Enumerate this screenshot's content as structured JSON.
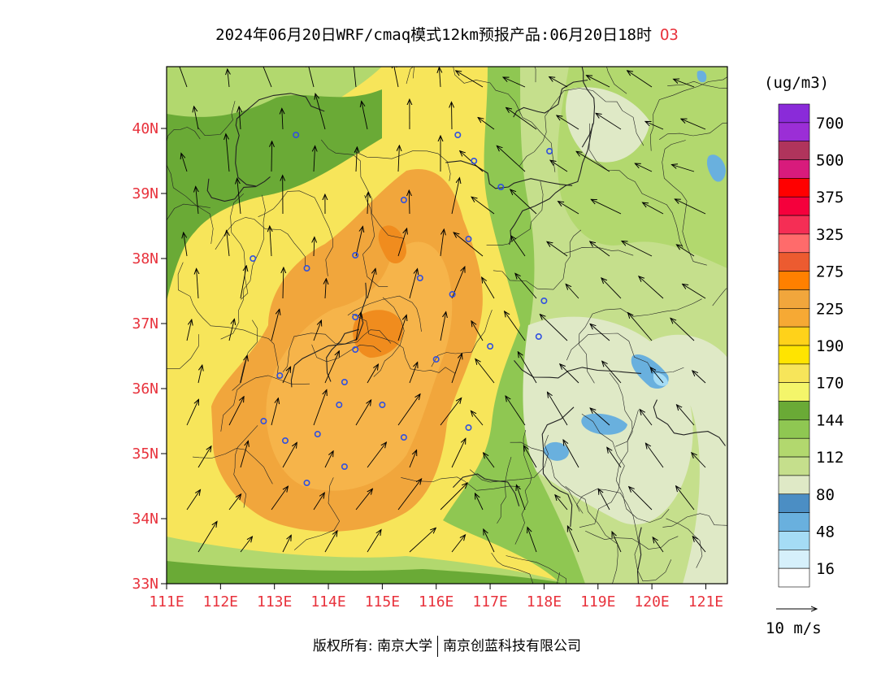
{
  "title": {
    "main": "2024年06月20日WRF/cmaq模式12km预报产品:06月20日18时",
    "pollutant": "O3"
  },
  "axes": {
    "lat_labels": [
      "33N",
      "34N",
      "35N",
      "36N",
      "37N",
      "38N",
      "39N",
      "40N"
    ],
    "lon_labels": [
      "111E",
      "112E",
      "113E",
      "114E",
      "115E",
      "116E",
      "117E",
      "118E",
      "119E",
      "120E",
      "121E"
    ]
  },
  "colorbar": {
    "unit": "(ug/m3)",
    "levels": [
      "16",
      "48",
      "80",
      "112",
      "144",
      "170",
      "190",
      "225",
      "275",
      "325",
      "375",
      "500",
      "700"
    ],
    "colors": [
      "#ffffff",
      "#d6f0fb",
      "#a5dcf5",
      "#69b0de",
      "#4b8ec4",
      "#dfe9c6",
      "#c5df8c",
      "#b2d86e",
      "#8fc752",
      "#6aaa36",
      "#f4f56a",
      "#f7e55a",
      "#ffe400",
      "#ffd21a",
      "#f6a934",
      "#f1a63c",
      "#ff8000",
      "#ec5b30",
      "#ff6b6b",
      "#f52e55",
      "#f5003c",
      "#ff0000",
      "#d81b7c",
      "#b0345c",
      "#9b2ed6",
      "#8a2bd9"
    ]
  },
  "wind_legend": {
    "label": "10 m/s"
  },
  "footer": {
    "left": "版权所有: 南京大学",
    "right": "南京创蓝科技有限公司"
  },
  "field_colors": {
    "sea_light": "#dfe9c6",
    "green_light": "#c5df8c",
    "green_mid": "#b2d86e",
    "green_dark": "#8fc752",
    "green_deep": "#6aaa36",
    "yellow_light": "#f4f56a",
    "yellow": "#f7e55a",
    "yellow_deep": "#ffe400",
    "orange_light": "#f6b44a",
    "orange": "#f1a63c",
    "orange_deep": "#f08c1e",
    "blue": "#69b0de",
    "blue_light": "#a5dcf5",
    "station": "#3050e0"
  }
}
